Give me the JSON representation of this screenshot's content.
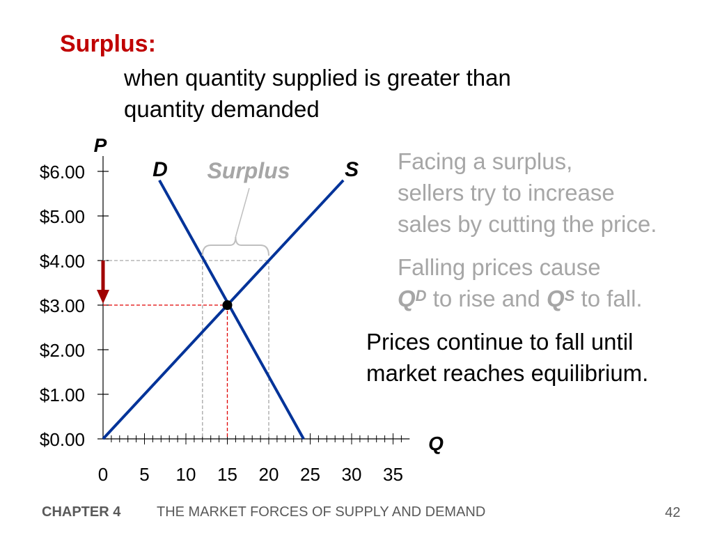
{
  "slide": {
    "heading": "Surplus:",
    "subtitle_line1": "when quantity supplied is greater than",
    "subtitle_line2": "quantity demanded",
    "notes": {
      "n1_line1": "Facing a surplus,",
      "n1_line2": "sellers try to increase",
      "n1_line3": "sales by cutting the price.",
      "n2_line1": "Falling prices cause",
      "n2_q": "Q",
      "n2_d": "D",
      "n2_mid": " to rise and ",
      "n2_s": "S",
      "n2_end": " to fall.",
      "n3_line1": "Prices continue to fall until",
      "n3_line2": "market reaches equilibrium."
    },
    "footer": {
      "chapter": "CHAPTER 4",
      "title": "THE MARKET FORCES OF SUPPLY AND DEMAND",
      "page": "42"
    }
  },
  "chart_data": {
    "type": "line",
    "ylabel": "P",
    "xlabel": "Q",
    "xlim": [
      0,
      37
    ],
    "ylim": [
      0,
      6
    ],
    "x_ticks": [
      0,
      5,
      10,
      15,
      20,
      25,
      30,
      35
    ],
    "x_tick_labels": [
      "0",
      "5",
      "10",
      "15",
      "20",
      "25",
      "30",
      "35"
    ],
    "y_ticks": [
      0,
      1,
      2,
      3,
      4,
      5,
      6
    ],
    "y_tick_labels": [
      "$0.00",
      "$1.00",
      "$2.00",
      "$3.00",
      "$4.00",
      "$5.00",
      "$6.00"
    ],
    "series": [
      {
        "name": "D",
        "x": [
          6.8,
          24.2
        ],
        "y": [
          5.8,
          0
        ]
      },
      {
        "name": "S",
        "x": [
          0,
          29
        ],
        "y": [
          0,
          5.8
        ]
      }
    ],
    "equilibrium": {
      "x": 15,
      "y": 3
    },
    "surplus": {
      "price": 4,
      "quantity_demanded": 12,
      "quantity_supplied": 20,
      "label": "Surplus"
    },
    "price_arrow": {
      "from": 4,
      "to": 3
    },
    "colors": {
      "curves": "#003399",
      "arrow": "#a00000",
      "guide_red": "#e00000",
      "guide_gray": "#a6a6a6",
      "surplus_label": "#a6a6a6"
    }
  }
}
